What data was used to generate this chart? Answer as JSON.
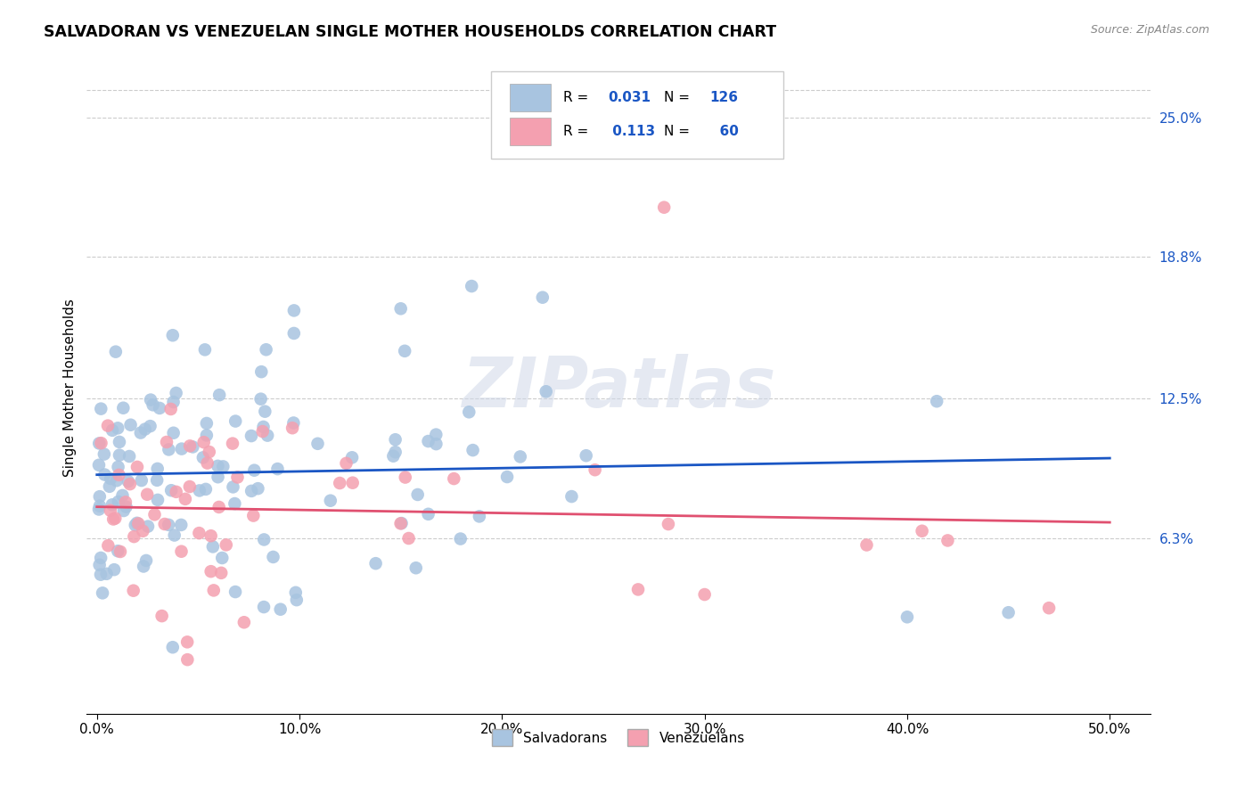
{
  "title": "SALVADORAN VS VENEZUELAN SINGLE MOTHER HOUSEHOLDS CORRELATION CHART",
  "source": "Source: ZipAtlas.com",
  "ylabel": "Single Mother Households",
  "x_tick_vals": [
    0.0,
    0.1,
    0.2,
    0.3,
    0.4,
    0.5
  ],
  "x_tick_labels": [
    "0.0%",
    "10.0%",
    "20.0%",
    "30.0%",
    "40.0%",
    "50.0%"
  ],
  "y_ticks_right": [
    0.063,
    0.125,
    0.188,
    0.25
  ],
  "y_tick_labels_right": [
    "6.3%",
    "12.5%",
    "18.8%",
    "25.0%"
  ],
  "xlim": [
    -0.005,
    0.52
  ],
  "ylim": [
    -0.015,
    0.275
  ],
  "watermark": "ZIPatlas",
  "legend_R_sal": "0.031",
  "legend_N_sal": "126",
  "legend_R_ven": "0.113",
  "legend_N_ven": "60",
  "salvadoran_color": "#a8c4e0",
  "venezuelan_color": "#f4a0b0",
  "trend_salvadoran_color": "#1a56c4",
  "trend_venezuelan_color": "#e05070",
  "background_color": "#ffffff",
  "grid_color": "#cccccc"
}
